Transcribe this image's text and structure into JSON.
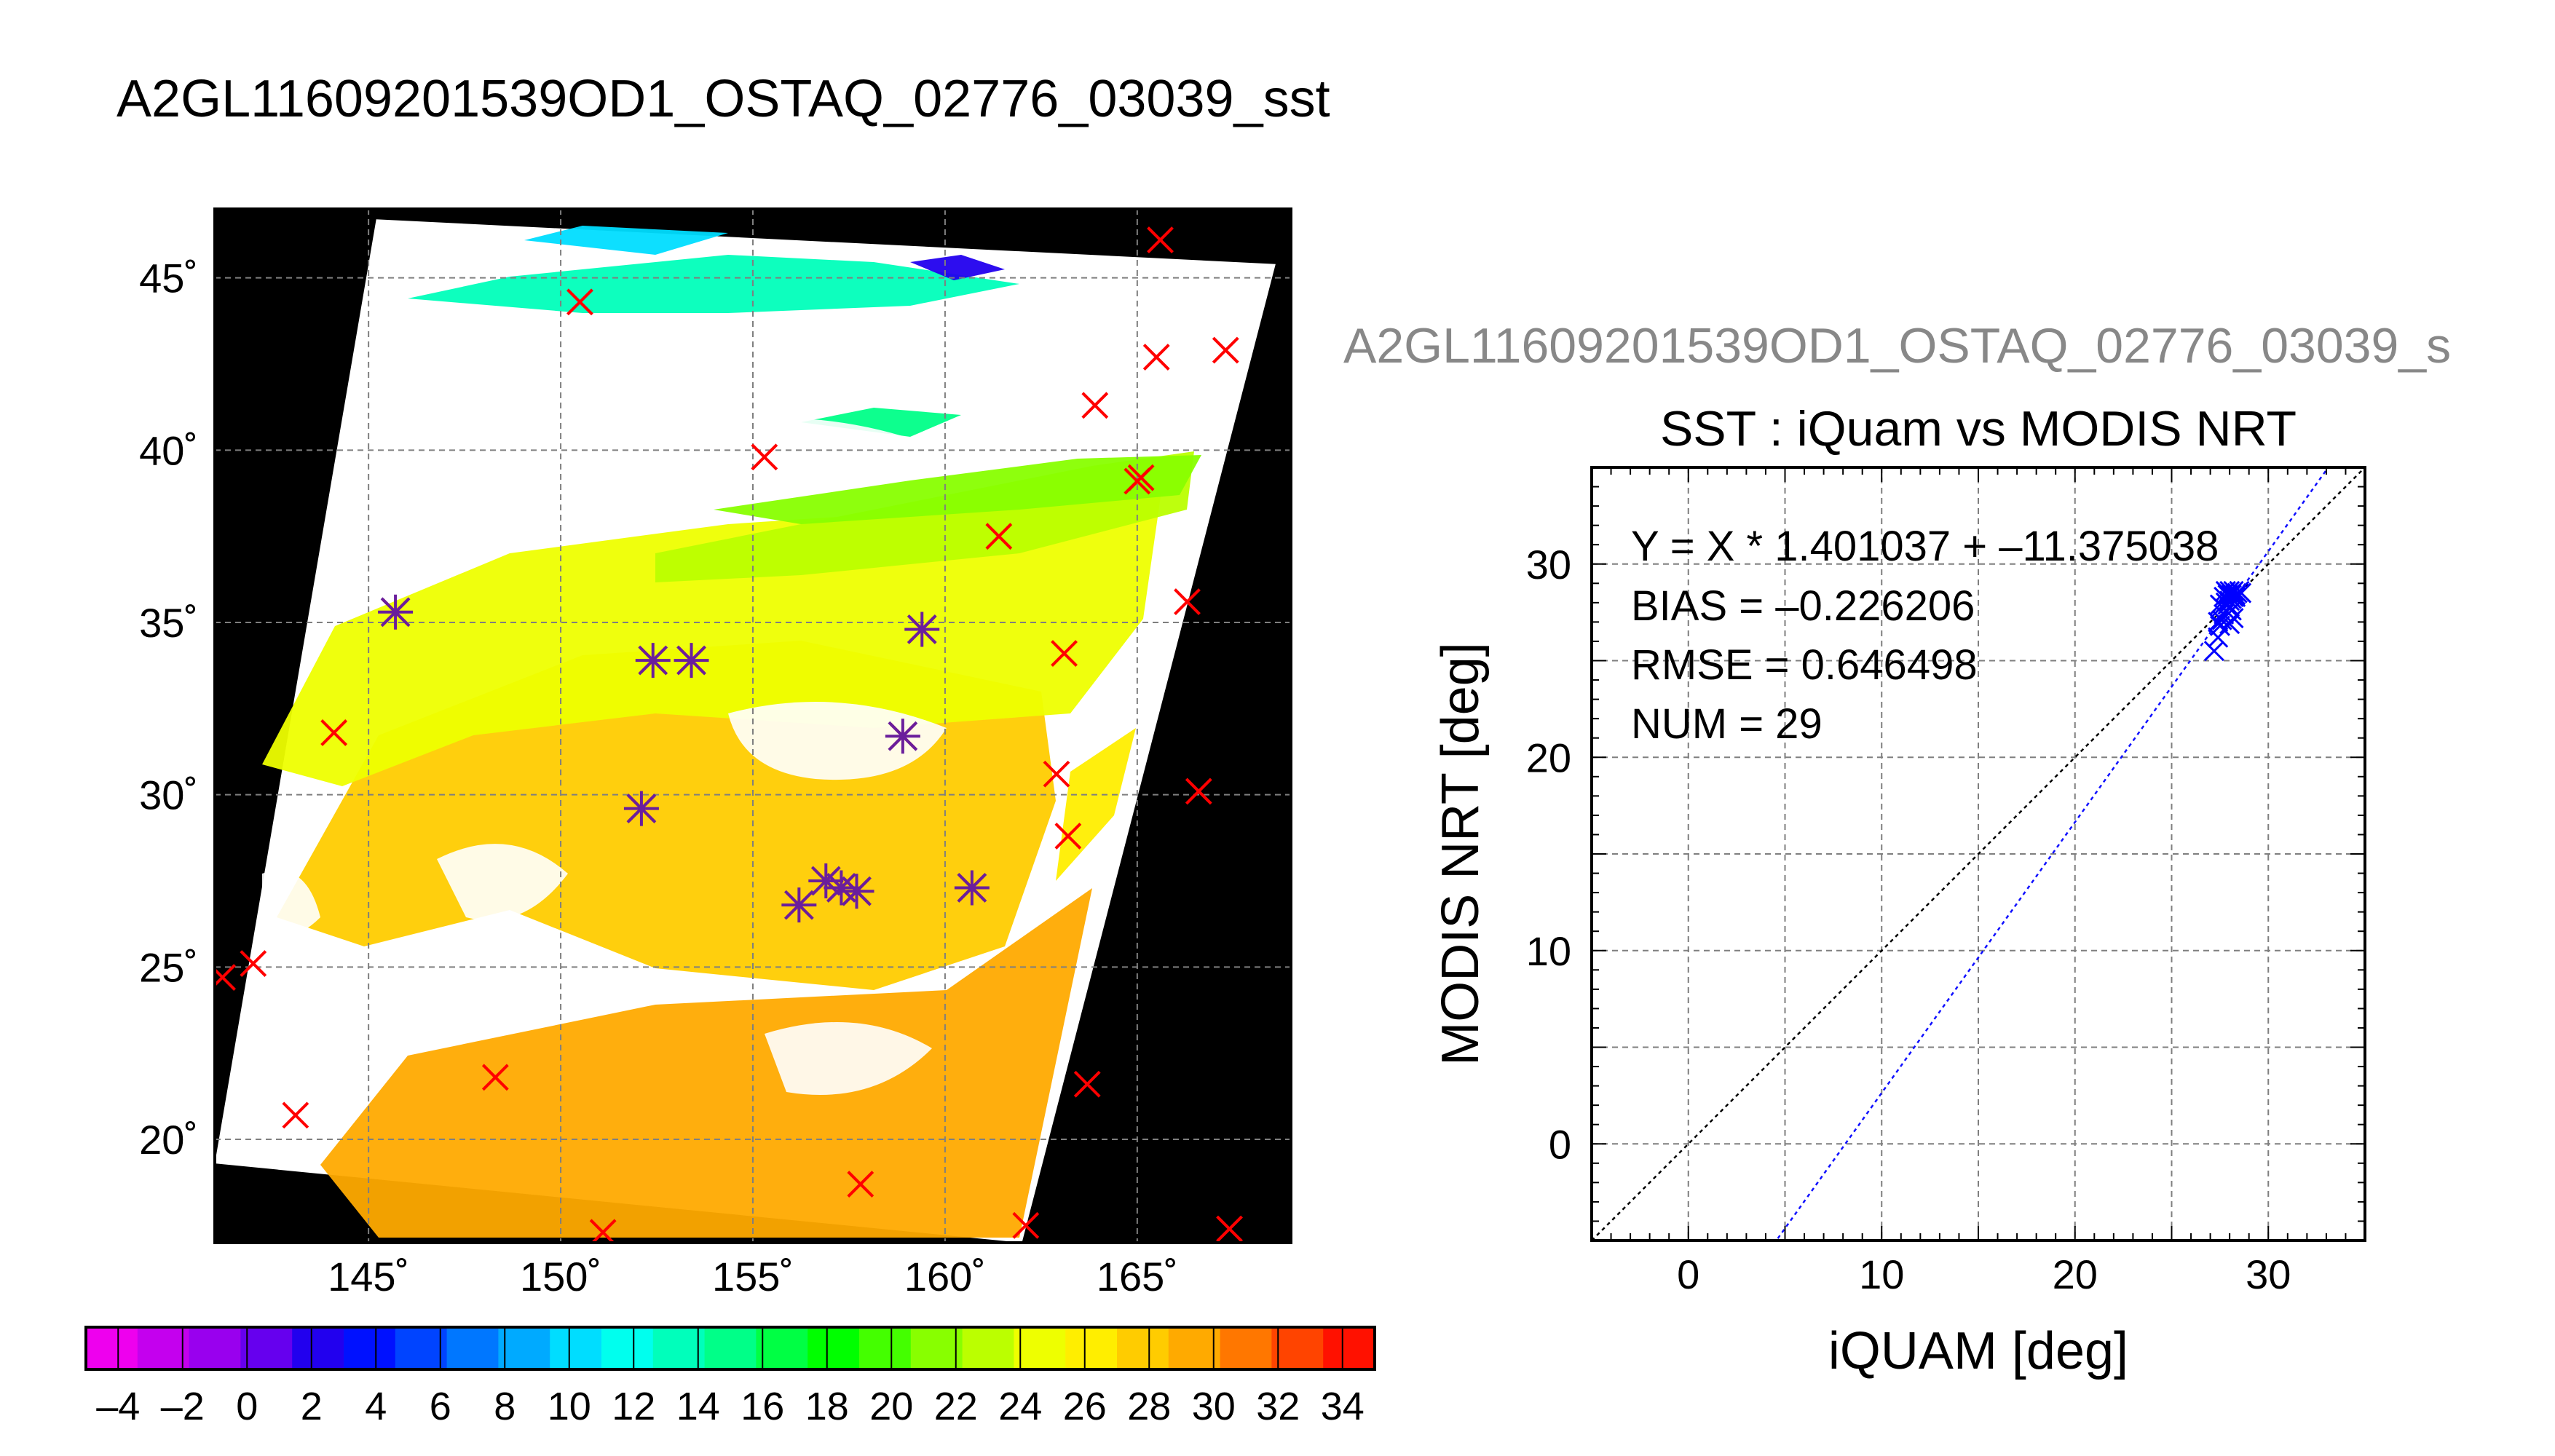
{
  "page": {
    "title": "A2GL11609201539OD1_OSTAQ_02776_03039_sst",
    "title_truncated": "A2GL11609201539OD1_OSTAQ_02776_03039_s"
  },
  "colors": {
    "background": "#ffffff",
    "map_background": "#000000",
    "grid": "#7f7f7f",
    "marker_red": "#ff0000",
    "marker_blue": "#0000ff",
    "marker_purple": "#6a1e9c",
    "fit_line": "#1010ff",
    "identity_line": "#000000",
    "subtitle_gray": "#888888"
  },
  "chart_data": [
    {
      "type": "heatmap",
      "title": "A2GL11609201539OD1_OSTAQ_02776_03039_sst",
      "xlabel": "",
      "ylabel": "",
      "xlim": [
        141,
        169
      ],
      "ylim": [
        17,
        47
      ],
      "x_ticks": [
        145,
        150,
        155,
        160,
        165
      ],
      "x_tick_labels": [
        "145˚",
        "150˚",
        "155˚",
        "160˚",
        "165˚"
      ],
      "y_ticks": [
        20,
        25,
        30,
        35,
        40,
        45
      ],
      "y_tick_labels": [
        "20˚",
        "25˚",
        "30˚",
        "35˚",
        "40˚",
        "45˚"
      ],
      "grid": true,
      "colorbar": {
        "min": -5,
        "max": 35,
        "tick_values": [
          -4,
          -2,
          0,
          2,
          4,
          6,
          8,
          10,
          12,
          14,
          16,
          18,
          20,
          22,
          24,
          26,
          28,
          30,
          32,
          34
        ],
        "tick_labels": [
          "–4",
          "–2",
          "0",
          "2",
          "4",
          "6",
          "8",
          "10",
          "12",
          "14",
          "16",
          "18",
          "20",
          "22",
          "24",
          "26",
          "28",
          "30",
          "32",
          "34"
        ],
        "colors": [
          "#ee00ee",
          "#c400ee",
          "#9900ee",
          "#6600ee",
          "#2200ee",
          "#0011ff",
          "#0044ff",
          "#0077ff",
          "#00aaff",
          "#00ddff",
          "#00ffee",
          "#00ffbb",
          "#00ff88",
          "#00ff44",
          "#00ff00",
          "#44ff00",
          "#88ff00",
          "#bbff00",
          "#eeff00",
          "#ffee00",
          "#ffcc00",
          "#ffaa00",
          "#ff7700",
          "#ff4400",
          "#ff1100"
        ]
      },
      "swath_corners": [
        [
          145.2,
          46.7
        ],
        [
          168.6,
          45.4
        ],
        [
          162.0,
          17.0
        ],
        [
          141.0,
          19.3
        ]
      ],
      "matchups_red": [
        [
          141.2,
          24.7
        ],
        [
          142.0,
          25.1
        ],
        [
          143.1,
          20.7
        ],
        [
          144.1,
          31.8
        ],
        [
          145.7,
          35.3
        ],
        [
          148.3,
          21.8
        ],
        [
          150.5,
          44.3
        ],
        [
          151.1,
          17.3
        ],
        [
          152.1,
          29.6
        ],
        [
          152.4,
          33.9
        ],
        [
          153.4,
          33.9
        ],
        [
          155.3,
          39.8
        ],
        [
          156.2,
          26.8
        ],
        [
          156.9,
          27.5
        ],
        [
          157.3,
          27.3
        ],
        [
          157.7,
          27.2
        ],
        [
          157.8,
          18.7
        ],
        [
          158.9,
          31.7
        ],
        [
          159.4,
          34.8
        ],
        [
          160.7,
          27.3
        ],
        [
          161.4,
          37.5
        ],
        [
          162.1,
          17.5
        ],
        [
          162.9,
          30.6
        ],
        [
          163.1,
          34.1
        ],
        [
          163.2,
          28.8
        ],
        [
          163.7,
          21.6
        ],
        [
          163.9,
          41.3
        ],
        [
          165.0,
          39.1
        ],
        [
          165.1,
          39.2
        ],
        [
          165.5,
          42.7
        ],
        [
          165.6,
          46.1
        ],
        [
          166.3,
          35.6
        ],
        [
          166.6,
          30.1
        ],
        [
          167.3,
          42.9
        ],
        [
          167.4,
          17.4
        ]
      ],
      "matchups_cloudfree": [
        [
          145.7,
          35.3
        ],
        [
          152.1,
          29.6
        ],
        [
          152.4,
          33.9
        ],
        [
          153.4,
          33.9
        ],
        [
          156.2,
          26.8
        ],
        [
          156.9,
          27.5
        ],
        [
          157.3,
          27.3
        ],
        [
          157.7,
          27.2
        ],
        [
          158.9,
          31.7
        ],
        [
          159.4,
          34.8
        ],
        [
          160.7,
          27.3
        ]
      ]
    },
    {
      "type": "scatter",
      "subtitle": "A2GL11609201539OD1_OSTAQ_02776_03039_s",
      "title": "SST : iQuam vs MODIS NRT",
      "xlabel": "iQUAM [deg]",
      "ylabel": "MODIS NRT [deg]",
      "xlim": [
        -5,
        35
      ],
      "ylim": [
        -5,
        35
      ],
      "x_ticks": [
        0,
        10,
        20,
        30
      ],
      "y_ticks": [
        0,
        10,
        20,
        30
      ],
      "x_tick_labels": [
        "0",
        "10",
        "20",
        "30"
      ],
      "y_tick_labels": [
        "0",
        "10",
        "20",
        "30"
      ],
      "grid": true,
      "annotations": [
        "Y = X * 1.401037 + –11.375038",
        "BIAS = –0.226206",
        "RMSE = 0.646498",
        "NUM = 29"
      ],
      "fit": {
        "slope": 1.401037,
        "intercept": -11.375038
      },
      "points": [
        [
          27.2,
          25.5
        ],
        [
          27.4,
          26.2
        ],
        [
          27.5,
          26.8
        ],
        [
          27.6,
          27.1
        ],
        [
          27.7,
          27.4
        ],
        [
          27.8,
          27.6
        ],
        [
          27.9,
          27.9
        ],
        [
          28.0,
          28.1
        ],
        [
          28.1,
          28.2
        ],
        [
          28.2,
          28.3
        ],
        [
          28.3,
          28.4
        ],
        [
          27.9,
          28.5
        ],
        [
          28.0,
          28.6
        ],
        [
          28.4,
          28.5
        ],
        [
          28.5,
          28.6
        ],
        [
          27.7,
          28.3
        ],
        [
          27.8,
          28.0
        ],
        [
          28.1,
          27.6
        ],
        [
          28.2,
          27.2
        ],
        [
          28.0,
          26.9
        ],
        [
          27.6,
          27.8
        ],
        [
          27.9,
          28.4
        ],
        [
          28.1,
          28.4
        ],
        [
          28.3,
          28.3
        ],
        [
          27.5,
          27.9
        ],
        [
          28.6,
          28.5
        ],
        [
          27.8,
          28.6
        ],
        [
          28.2,
          28.6
        ],
        [
          27.4,
          27.0
        ]
      ]
    }
  ]
}
